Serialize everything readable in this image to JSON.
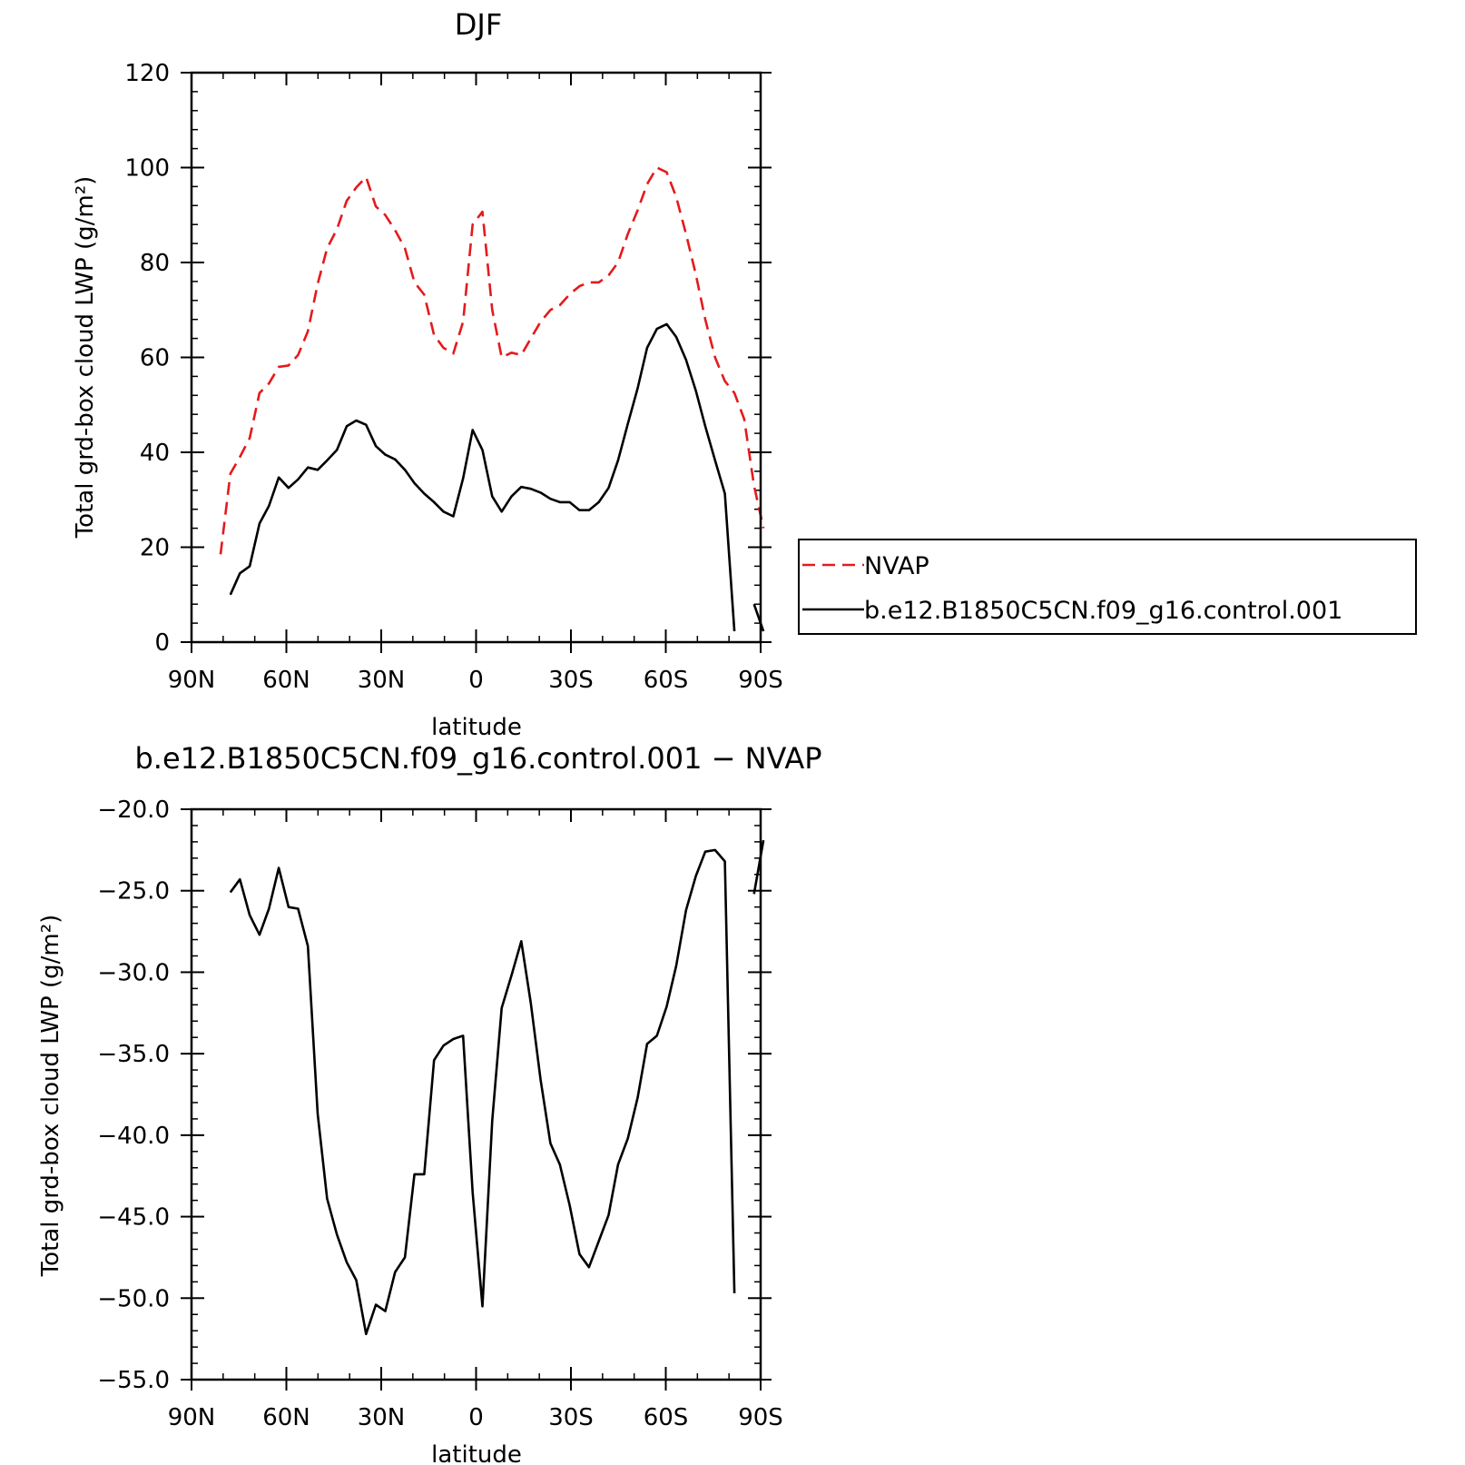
{
  "chart_data": [
    {
      "type": "line",
      "title": "DJF",
      "xlabel": "latitude",
      "ylabel": "Total grd-box cloud LWP (g/m²)",
      "xlim": [
        90,
        -90
      ],
      "ylim": [
        0,
        120
      ],
      "x_tick_values": [
        90,
        60,
        30,
        0,
        -30,
        -60,
        -90
      ],
      "x_tick_labels": [
        "90N",
        "60N",
        "30N",
        "0",
        "30S",
        "60S",
        "90S"
      ],
      "y_tick_values": [
        0,
        20,
        40,
        60,
        80,
        100,
        120
      ],
      "y_tick_labels": [
        "0",
        "20",
        "40",
        "60",
        "80",
        "100",
        "120"
      ],
      "legend": {
        "placement": "right",
        "entries": [
          "NVAP",
          "b.e12.B1850C5CN.f09_g16.control.001"
        ]
      },
      "series": [
        {
          "name": "NVAP",
          "color": "#e41a1c",
          "dash": true,
          "segments": [
            [
              [
                80.8,
                18.5
              ],
              [
                77.7,
                35.5
              ],
              [
                74.7,
                39
              ],
              [
                71.6,
                43
              ],
              [
                68.5,
                52.5
              ],
              [
                65.5,
                54.5
              ],
              [
                62.4,
                58
              ],
              [
                59.3,
                58.3
              ],
              [
                56.3,
                60.5
              ],
              [
                53.2,
                65.5
              ],
              [
                50.1,
                75.5
              ],
              [
                47.1,
                83
              ],
              [
                44,
                87
              ],
              [
                40.9,
                93
              ],
              [
                37.9,
                95.8
              ],
              [
                34.8,
                98
              ],
              [
                31.7,
                91.8
              ],
              [
                28.7,
                90
              ],
              [
                25.6,
                86.8
              ],
              [
                22.5,
                83
              ],
              [
                19.5,
                75.8
              ],
              [
                16.4,
                73.2
              ],
              [
                13.3,
                64.7
              ],
              [
                10.3,
                62
              ],
              [
                7.2,
                60.8
              ],
              [
                4.1,
                67.5
              ],
              [
                1.1,
                88
              ],
              [
                -2,
                90.7
              ],
              [
                -5.1,
                70
              ],
              [
                -8.1,
                60
              ],
              [
                -11.2,
                61
              ],
              [
                -14.3,
                60.5
              ],
              [
                -17.3,
                64
              ],
              [
                -20.4,
                67.5
              ],
              [
                -23.5,
                70
              ],
              [
                -26.5,
                71
              ],
              [
                -29.6,
                73.3
              ],
              [
                -32.7,
                75
              ],
              [
                -35.7,
                75.8
              ],
              [
                -38.8,
                75.8
              ],
              [
                -41.9,
                77.3
              ],
              [
                -44.9,
                80
              ],
              [
                -48,
                86
              ],
              [
                -51.1,
                91
              ],
              [
                -54.1,
                96.5
              ],
              [
                -57.2,
                100
              ],
              [
                -60.3,
                99
              ],
              [
                -63.3,
                93.8
              ],
              [
                -66.4,
                86
              ],
              [
                -69.5,
                77.5
              ],
              [
                -72.5,
                68
              ],
              [
                -75.6,
                60
              ],
              [
                -78.7,
                55
              ],
              [
                -81.7,
                52.5
              ],
              [
                -84.8,
                47
              ],
              [
                -87.9,
                33
              ],
              [
                -90.9,
                24
              ]
            ]
          ]
        },
        {
          "name": "b.e12.B1850C5CN.f09_g16.control.001",
          "color": "#000000",
          "dash": false,
          "segments": [
            [
              [
                77.7,
                10
              ],
              [
                74.7,
                14.5
              ],
              [
                71.6,
                16
              ],
              [
                68.5,
                25
              ],
              [
                65.5,
                28.7
              ],
              [
                62.4,
                34.7
              ],
              [
                59.3,
                32.5
              ],
              [
                56.3,
                34.3
              ],
              [
                53.2,
                36.8
              ],
              [
                50.1,
                36.3
              ],
              [
                47.1,
                38.3
              ],
              [
                44,
                40.5
              ],
              [
                40.9,
                45.5
              ],
              [
                37.9,
                46.7
              ],
              [
                34.8,
                45.8
              ],
              [
                31.7,
                41.3
              ],
              [
                28.7,
                39.5
              ],
              [
                25.6,
                38.5
              ],
              [
                22.5,
                36.3
              ],
              [
                19.5,
                33.5
              ],
              [
                16.4,
                31.3
              ],
              [
                13.3,
                29.5
              ],
              [
                10.3,
                27.5
              ],
              [
                7.2,
                26.5
              ],
              [
                4.1,
                34.5
              ],
              [
                1.1,
                44.7
              ],
              [
                -2,
                40.5
              ],
              [
                -5.1,
                30.7
              ],
              [
                -8.1,
                27.5
              ],
              [
                -11.2,
                30.7
              ],
              [
                -14.3,
                32.7
              ],
              [
                -17.3,
                32.3
              ],
              [
                -20.4,
                31.5
              ],
              [
                -23.5,
                30.2
              ],
              [
                -26.5,
                29.5
              ],
              [
                -29.6,
                29.5
              ],
              [
                -32.7,
                27.8
              ],
              [
                -35.7,
                27.8
              ],
              [
                -38.8,
                29.5
              ],
              [
                -41.9,
                32.5
              ],
              [
                -44.9,
                38.3
              ],
              [
                -48,
                46
              ],
              [
                -51.1,
                53.5
              ],
              [
                -54.1,
                62
              ],
              [
                -57.2,
                66
              ],
              [
                -60.3,
                67
              ],
              [
                -63.3,
                64.3
              ],
              [
                -66.4,
                59.5
              ],
              [
                -69.5,
                53
              ],
              [
                -72.5,
                45.5
              ],
              [
                -75.6,
                38.3
              ],
              [
                -78.7,
                31.3
              ],
              [
                -81.7,
                2.3
              ]
            ],
            [
              [
                -87.9,
                8
              ],
              [
                -90.9,
                2.3
              ]
            ]
          ]
        }
      ]
    },
    {
      "type": "line",
      "title": "b.e12.B1850C5CN.f09_g16.control.001 − NVAP",
      "xlabel": "latitude",
      "ylabel": "Total grd-box cloud LWP (g/m²)",
      "xlim": [
        90,
        -90
      ],
      "ylim": [
        -55,
        -20
      ],
      "x_tick_values": [
        90,
        60,
        30,
        0,
        -30,
        -60,
        -90
      ],
      "x_tick_labels": [
        "90N",
        "60N",
        "30N",
        "0",
        "30S",
        "60S",
        "90S"
      ],
      "y_tick_values": [
        -20,
        -25,
        -30,
        -35,
        -40,
        -45,
        -50,
        -55
      ],
      "y_tick_labels": [
        "−20.0",
        "−25.0",
        "−30.0",
        "−35.0",
        "−40.0",
        "−45.0",
        "−50.0",
        "−55.0"
      ],
      "series": [
        {
          "color": "#000000",
          "dash": false,
          "segments": [
            [
              [
                77.7,
                -25.1
              ],
              [
                74.7,
                -24.3
              ],
              [
                71.6,
                -26.5
              ],
              [
                68.5,
                -27.7
              ],
              [
                65.5,
                -26.1
              ],
              [
                62.4,
                -23.6
              ],
              [
                59.3,
                -26
              ],
              [
                56.3,
                -26.1
              ],
              [
                53.2,
                -28.4
              ],
              [
                50.1,
                -38.7
              ],
              [
                47.1,
                -43.9
              ],
              [
                44,
                -46.1
              ],
              [
                40.9,
                -47.8
              ],
              [
                37.9,
                -48.9
              ],
              [
                34.8,
                -52.2
              ],
              [
                31.7,
                -50.4
              ],
              [
                28.7,
                -50.8
              ],
              [
                25.6,
                -48.4
              ],
              [
                22.5,
                -47.5
              ],
              [
                19.5,
                -42.4
              ],
              [
                16.4,
                -42.4
              ],
              [
                13.3,
                -35.4
              ],
              [
                10.3,
                -34.5
              ],
              [
                7.2,
                -34.1
              ],
              [
                4.1,
                -33.9
              ],
              [
                1.1,
                -43.5
              ],
              [
                -2,
                -50.5
              ],
              [
                -5.1,
                -39.1
              ],
              [
                -8.1,
                -32.2
              ],
              [
                -11.2,
                -30.2
              ],
              [
                -14.3,
                -28.1
              ],
              [
                -17.3,
                -31.9
              ],
              [
                -20.4,
                -36.6
              ],
              [
                -23.5,
                -40.5
              ],
              [
                -26.5,
                -41.8
              ],
              [
                -29.6,
                -44.3
              ],
              [
                -32.7,
                -47.3
              ],
              [
                -35.7,
                -48.1
              ],
              [
                -38.8,
                -46.5
              ],
              [
                -41.9,
                -44.9
              ],
              [
                -44.9,
                -41.8
              ],
              [
                -48,
                -40.2
              ],
              [
                -51.1,
                -37.7
              ],
              [
                -54.1,
                -34.4
              ],
              [
                -57.2,
                -33.9
              ],
              [
                -60.3,
                -32.1
              ],
              [
                -63.3,
                -29.6
              ],
              [
                -66.4,
                -26.2
              ],
              [
                -69.5,
                -24.1
              ],
              [
                -72.5,
                -22.6
              ],
              [
                -75.6,
                -22.5
              ],
              [
                -78.7,
                -23.2
              ],
              [
                -81.7,
                -49.7
              ]
            ],
            [
              [
                -87.9,
                -25.2
              ],
              [
                -90.9,
                -21.9
              ]
            ]
          ]
        }
      ]
    }
  ]
}
